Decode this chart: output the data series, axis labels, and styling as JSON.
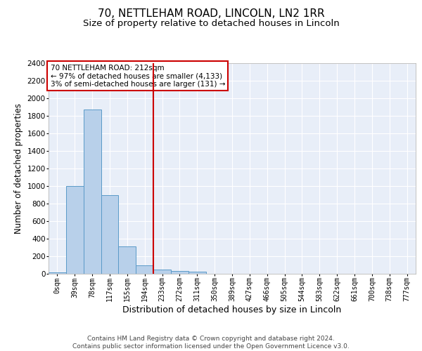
{
  "title1": "70, NETTLEHAM ROAD, LINCOLN, LN2 1RR",
  "title2": "Size of property relative to detached houses in Lincoln",
  "xlabel": "Distribution of detached houses by size in Lincoln",
  "ylabel": "Number of detached properties",
  "annotation_line1": "70 NETTLEHAM ROAD: 212sqm",
  "annotation_line2": "← 97% of detached houses are smaller (4,133)",
  "annotation_line3": "3% of semi-detached houses are larger (131) →",
  "footer1": "Contains HM Land Registry data © Crown copyright and database right 2024.",
  "footer2": "Contains public sector information licensed under the Open Government Licence v3.0.",
  "x_labels": [
    "0sqm",
    "39sqm",
    "78sqm",
    "117sqm",
    "155sqm",
    "194sqm",
    "233sqm",
    "272sqm",
    "311sqm",
    "350sqm",
    "389sqm",
    "427sqm",
    "466sqm",
    "505sqm",
    "544sqm",
    "583sqm",
    "622sqm",
    "661sqm",
    "700sqm",
    "738sqm",
    "777sqm"
  ],
  "bar_values": [
    20,
    1000,
    1870,
    900,
    310,
    100,
    50,
    35,
    25,
    0,
    0,
    0,
    0,
    0,
    0,
    0,
    0,
    0,
    0,
    0,
    0
  ],
  "bar_color": "#b8d0ea",
  "bar_edge_color": "#5a9ac8",
  "background_color": "#e8eef8",
  "grid_color": "#ffffff",
  "red_line_x": 6.0,
  "ylim": [
    0,
    2400
  ],
  "yticks": [
    0,
    200,
    400,
    600,
    800,
    1000,
    1200,
    1400,
    1600,
    1800,
    2000,
    2200,
    2400
  ],
  "annotation_box_color": "#ffffff",
  "annotation_box_edge": "#cc0000",
  "red_line_color": "#cc0000",
  "title1_fontsize": 11,
  "title2_fontsize": 9.5,
  "ylabel_fontsize": 8.5,
  "xlabel_fontsize": 9,
  "tick_fontsize": 7,
  "footer_fontsize": 6.5,
  "annotation_fontsize": 7.5
}
